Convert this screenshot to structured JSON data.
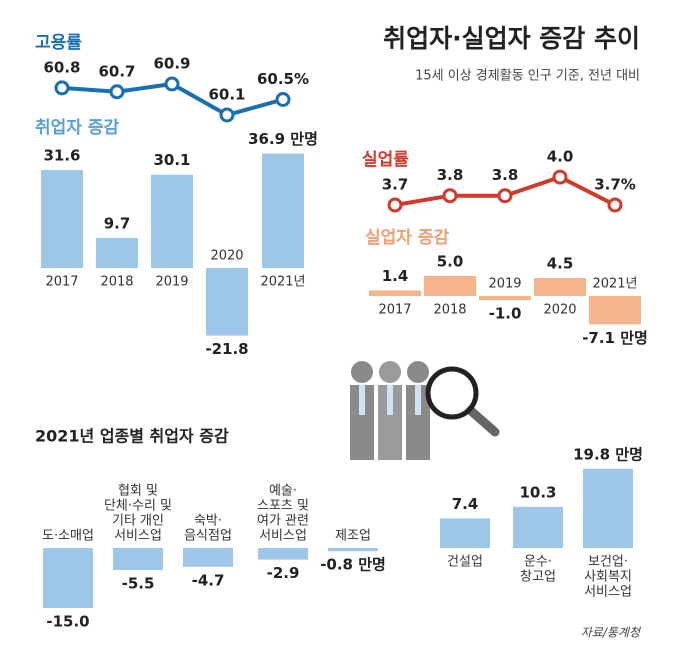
{
  "title": "취업자·실업자 증감 추이",
  "subtitle": "15세 이상 경제활동 인구 기준, 전년 대비",
  "source": "자료/통계청",
  "chart_data": [
    {
      "type": "line",
      "title": "고용률",
      "color": "#1a6fb0",
      "values": [
        60.8,
        60.7,
        60.9,
        60.1,
        60.5
      ],
      "value_labels": [
        "60.8",
        "60.7",
        "60.9",
        "60.1",
        "60.5%"
      ]
    },
    {
      "type": "bar",
      "title": "취업자 증감",
      "color": "#9ec6e8",
      "title_color": "#5a9fd6",
      "categories": [
        "2017",
        "2018",
        "2019",
        "2020",
        "2021년"
      ],
      "values": [
        31.6,
        9.7,
        30.1,
        -21.8,
        36.9
      ],
      "value_labels": [
        "31.6",
        "9.7",
        "30.1",
        "-21.8",
        "36.9 만명"
      ]
    },
    {
      "type": "line",
      "title": "실업률",
      "color": "#d03a2a",
      "values": [
        3.7,
        3.8,
        3.8,
        4.0,
        3.7
      ],
      "value_labels": [
        "3.7",
        "3.8",
        "3.8",
        "4.0",
        "3.7%"
      ]
    },
    {
      "type": "bar",
      "title": "실업자 증감",
      "color": "#f5b48c",
      "title_color": "#f0a070",
      "categories": [
        "2017",
        "2018",
        "2019",
        "2020",
        "2021년"
      ],
      "values": [
        1.4,
        5.0,
        -1.0,
        4.5,
        -7.1
      ],
      "value_labels": [
        "1.4",
        "5.0",
        "-1.0",
        "4.5",
        "-7.1 만명"
      ]
    },
    {
      "type": "bar",
      "title": "2021년 업종별 취업자 증감",
      "color": "#9ec6e8",
      "title_color": "#222222",
      "categories": [
        [
          "도·소매업"
        ],
        [
          "협회 및",
          "단체·수리 및",
          "기타 개인",
          "서비스업"
        ],
        [
          "숙박·",
          "음식점업"
        ],
        [
          "예술·",
          "스포츠 및",
          "여가 관련",
          "서비스업"
        ],
        [
          "제조업"
        ],
        [
          "건설업"
        ],
        [
          "운수·",
          "창고업"
        ],
        [
          "보건업·",
          "사회복지",
          "서비스업"
        ]
      ],
      "values": [
        -15.0,
        -5.5,
        -4.7,
        -2.9,
        -0.8,
        7.4,
        10.3,
        19.8
      ],
      "value_labels": [
        "-15.0",
        "-5.5",
        "-4.7",
        "-2.9",
        "-0.8 만명",
        "7.4",
        "10.3",
        "19.8 만명"
      ]
    }
  ]
}
